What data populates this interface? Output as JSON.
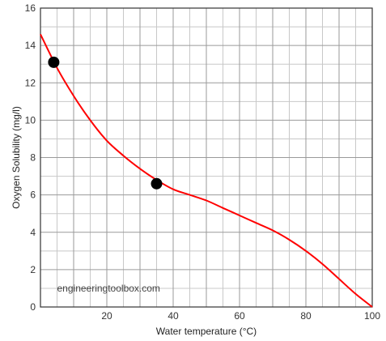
{
  "chart_data": {
    "type": "line",
    "xlabel": "Water temperature (°C)",
    "ylabel": "Oxygen Solubility (mg/l)",
    "xlim": [
      0,
      100
    ],
    "ylim": [
      0,
      16
    ],
    "x_ticks": [
      20,
      40,
      60,
      80,
      100
    ],
    "x_tick_labels": [
      "20",
      "40",
      "60",
      "80",
      "100"
    ],
    "y_ticks": [
      0,
      2,
      4,
      6,
      8,
      10,
      12,
      14,
      16
    ],
    "y_tick_labels": [
      "0",
      "2",
      "4",
      "6",
      "8",
      "10",
      "12",
      "14",
      "16"
    ],
    "grid": true,
    "annotation": "engineeringtoolbox.com",
    "series": [
      {
        "color": "#ff0000",
        "x": [
          0,
          5,
          10,
          15,
          20,
          25,
          30,
          35,
          40,
          45,
          50,
          55,
          60,
          65,
          70,
          75,
          80,
          85,
          90,
          95,
          100
        ],
        "y": [
          14.6,
          12.8,
          11.3,
          10.0,
          8.9,
          8.1,
          7.4,
          6.8,
          6.3,
          6.0,
          5.7,
          5.3,
          4.9,
          4.5,
          4.1,
          3.6,
          3.0,
          2.3,
          1.5,
          0.7,
          0
        ]
      }
    ],
    "points": [
      {
        "x": 4,
        "y": 13.1,
        "color": "#000000"
      },
      {
        "x": 35,
        "y": 6.6,
        "color": "#000000"
      }
    ]
  }
}
